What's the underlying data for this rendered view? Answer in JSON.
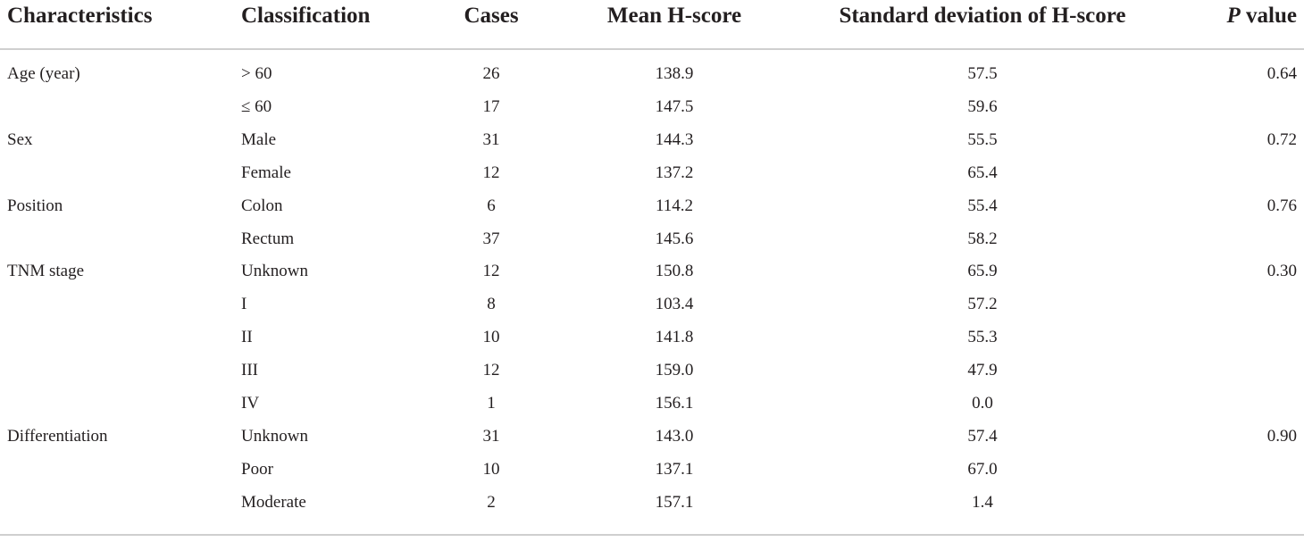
{
  "header": {
    "characteristics": "Characteristics",
    "classification": "Classification",
    "cases": "Cases",
    "mean": "Mean H-score",
    "sd": "Standard deviation of H-score",
    "p_prefix": "P",
    "p_suffix": " value"
  },
  "rows": [
    {
      "characteristic": "Age (year)",
      "classification": "> 60",
      "cases": "26",
      "mean": "138.9",
      "sd": "57.5",
      "p": "0.64"
    },
    {
      "characteristic": "",
      "classification": "≤ 60",
      "cases": "17",
      "mean": "147.5",
      "sd": "59.6",
      "p": ""
    },
    {
      "characteristic": "Sex",
      "classification": "Male",
      "cases": "31",
      "mean": "144.3",
      "sd": "55.5",
      "p": "0.72"
    },
    {
      "characteristic": "",
      "classification": "Female",
      "cases": "12",
      "mean": "137.2",
      "sd": "65.4",
      "p": ""
    },
    {
      "characteristic": "Position",
      "classification": "Colon",
      "cases": "6",
      "mean": "114.2",
      "sd": "55.4",
      "p": "0.76"
    },
    {
      "characteristic": "",
      "classification": "Rectum",
      "cases": "37",
      "mean": "145.6",
      "sd": "58.2",
      "p": ""
    },
    {
      "characteristic": "TNM stage",
      "classification": "Unknown",
      "cases": "12",
      "mean": "150.8",
      "sd": "65.9",
      "p": "0.30"
    },
    {
      "characteristic": "",
      "classification": "I",
      "cases": "8",
      "mean": "103.4",
      "sd": "57.2",
      "p": ""
    },
    {
      "characteristic": "",
      "classification": "II",
      "cases": "10",
      "mean": "141.8",
      "sd": "55.3",
      "p": ""
    },
    {
      "characteristic": "",
      "classification": "III",
      "cases": "12",
      "mean": "159.0",
      "sd": "47.9",
      "p": ""
    },
    {
      "characteristic": "",
      "classification": "IV",
      "cases": "1",
      "mean": "156.1",
      "sd": "0.0",
      "p": ""
    },
    {
      "characteristic": "Differentiation",
      "classification": "Unknown",
      "cases": "31",
      "mean": "143.0",
      "sd": "57.4",
      "p": "0.90"
    },
    {
      "characteristic": "",
      "classification": "Poor",
      "cases": "10",
      "mean": "137.1",
      "sd": "67.0",
      "p": ""
    },
    {
      "characteristic": "",
      "classification": "Moderate",
      "cases": "2",
      "mean": "157.1",
      "sd": "1.4",
      "p": ""
    }
  ]
}
